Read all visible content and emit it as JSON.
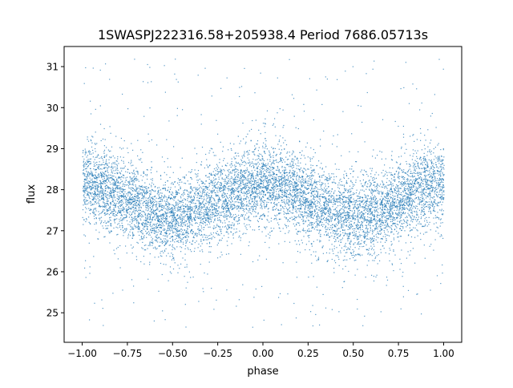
{
  "chart_data": {
    "type": "scatter",
    "title": "1SWASPJ222316.58+205938.4 Period 7686.05713s",
    "xlabel": "phase",
    "ylabel": "flux",
    "xlim": [
      -1.1,
      1.1
    ],
    "ylim": [
      24.28,
      31.49
    ],
    "xticks": [
      -1.0,
      -0.75,
      -0.5,
      -0.25,
      0.0,
      0.25,
      0.5,
      0.75,
      1.0
    ],
    "xtick_labels": [
      "−1.00",
      "−0.75",
      "−0.50",
      "−0.25",
      "0.00",
      "0.25",
      "0.50",
      "0.75",
      "1.00"
    ],
    "yticks": [
      25,
      26,
      27,
      28,
      29,
      30,
      31
    ],
    "ytick_labels": [
      "25",
      "26",
      "27",
      "28",
      "29",
      "30",
      "31"
    ],
    "grid": false,
    "marker_color": "#1f77b4",
    "data_summary": {
      "phase_range": [
        -1.0,
        1.0
      ],
      "mean_flux": 27.75,
      "semi_amplitude": 0.4,
      "flux_maxima_at_phase": [
        -1.0,
        0.0,
        1.0
      ],
      "flux_minima_at_phase": [
        -0.5,
        0.5
      ],
      "scatter_sd": 0.5,
      "outlier_flux_range": [
        24.6,
        31.2
      ]
    }
  }
}
